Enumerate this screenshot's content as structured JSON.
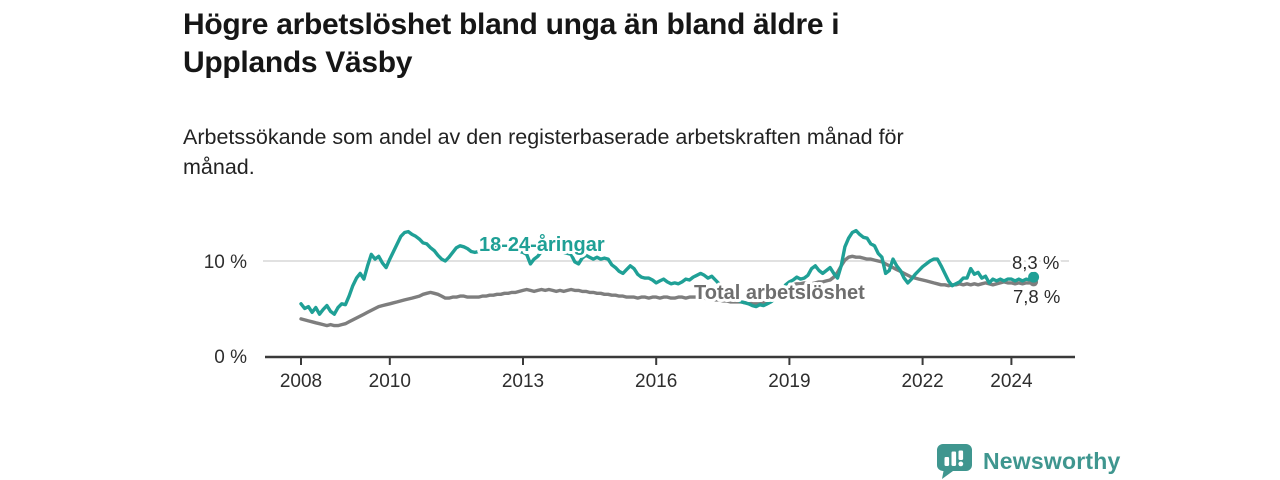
{
  "header": {
    "title_line1": "Högre arbetslöshet bland unga än bland äldre i",
    "title_line2": "Upplands Väsby",
    "subtitle_line1": "Arbetssökande som andel av den registerbaserade arbetskraften månad för",
    "subtitle_line2": "månad."
  },
  "footer": {
    "brand": "Newsworthy"
  },
  "colors": {
    "youth": "#1fa096",
    "total": "#7e7e7e",
    "total_label": "#6e6e6e",
    "axis": "#3a3a3a",
    "grid": "#cfcfcf",
    "text": "#2e2e2e",
    "brand": "#3f968f",
    "background": "#ffffff"
  },
  "chart_data": {
    "type": "line",
    "title": "Högre arbetslöshet bland unga än bland äldre i Upplands Väsby",
    "subtitle": "Arbetssökande som andel av den registerbaserade arbetskraften månad för månad.",
    "x_start": 2008,
    "x_step_months": 1,
    "x_end_approx": 2024.5,
    "xlabel": "",
    "ylabel": "",
    "ylim": [
      0,
      15.5
    ],
    "grid": "horizontal-10-only",
    "legend_position": "inline-labels",
    "x_ticks": [
      2008,
      2010,
      2013,
      2016,
      2019,
      2022,
      2024
    ],
    "x_tick_labels": [
      "2008",
      "2010",
      "2013",
      "2016",
      "2019",
      "2022",
      "2024"
    ],
    "y_ticks": [
      {
        "value": 0,
        "label": "0 %",
        "grid": false
      },
      {
        "value": 10,
        "label": "10 %",
        "grid": true
      }
    ],
    "series": [
      {
        "name": "18-24-åringar",
        "color": "#1fa096",
        "end_label": "8,3 %",
        "end_value": 8.3,
        "values": [
          5.5,
          5.0,
          5.2,
          4.6,
          5.1,
          4.4,
          4.9,
          5.3,
          4.7,
          4.4,
          5.1,
          5.5,
          5.4,
          6.3,
          7.4,
          8.2,
          8.7,
          8.1,
          9.5,
          10.7,
          10.2,
          10.5,
          9.8,
          9.3,
          10.2,
          11.0,
          11.8,
          12.6,
          13.0,
          13.1,
          12.8,
          12.6,
          12.3,
          11.9,
          11.8,
          11.4,
          11.1,
          10.6,
          10.2,
          10.0,
          10.4,
          10.9,
          11.4,
          11.6,
          11.5,
          11.3,
          11.0,
          10.9,
          11.0,
          11.2,
          11.5,
          11.3,
          11.6,
          11.4,
          11.2,
          11.5,
          11.3,
          11.1,
          11.2,
          11.0,
          10.9,
          10.7,
          9.7,
          10.2,
          10.5,
          11.0,
          11.2,
          11.0,
          11.3,
          11.1,
          11.0,
          10.9,
          10.8,
          10.7,
          9.9,
          9.7,
          10.3,
          10.6,
          10.4,
          10.2,
          10.4,
          10.2,
          10.3,
          10.2,
          9.6,
          9.3,
          8.9,
          8.7,
          9.1,
          9.5,
          9.2,
          8.6,
          8.3,
          8.2,
          8.2,
          8.0,
          7.7,
          7.9,
          8.1,
          7.8,
          7.6,
          7.7,
          7.6,
          7.8,
          8.1,
          8.0,
          8.3,
          8.5,
          8.7,
          8.5,
          8.2,
          8.4,
          8.0,
          7.6,
          7.3,
          6.9,
          6.5,
          6.2,
          5.9,
          5.7,
          5.6,
          5.5,
          5.3,
          5.2,
          5.4,
          5.3,
          5.5,
          5.7,
          6.0,
          6.4,
          6.9,
          7.5,
          7.8,
          8.0,
          8.3,
          8.1,
          8.2,
          8.5,
          9.2,
          9.5,
          9.0,
          8.7,
          9.0,
          9.3,
          8.7,
          8.2,
          9.5,
          11.5,
          12.4,
          13.0,
          13.2,
          12.8,
          12.5,
          12.4,
          11.8,
          11.6,
          10.8,
          10.4,
          8.7,
          9.0,
          10.2,
          9.5,
          9.0,
          8.2,
          7.7,
          8.1,
          8.6,
          9.0,
          9.4,
          9.7,
          10.0,
          10.2,
          10.2,
          9.5,
          8.7,
          7.9,
          7.4,
          7.6,
          7.8,
          8.2,
          8.2,
          9.2,
          8.6,
          8.8,
          8.2,
          8.4,
          7.7,
          8.1,
          7.9,
          8.1,
          7.9,
          8.1,
          8.1,
          7.9,
          8.1,
          7.9,
          8.1,
          8.0,
          8.3
        ]
      },
      {
        "name": "Total arbetslöshet",
        "color": "#7e7e7e",
        "label_color": "#6e6e6e",
        "end_label": "7,8 %",
        "end_value": 7.8,
        "values": [
          3.9,
          3.8,
          3.7,
          3.6,
          3.5,
          3.4,
          3.3,
          3.2,
          3.3,
          3.2,
          3.2,
          3.3,
          3.4,
          3.6,
          3.8,
          4.0,
          4.2,
          4.4,
          4.6,
          4.8,
          5.0,
          5.2,
          5.3,
          5.4,
          5.5,
          5.6,
          5.7,
          5.8,
          5.9,
          6.0,
          6.1,
          6.2,
          6.3,
          6.5,
          6.6,
          6.7,
          6.6,
          6.5,
          6.3,
          6.1,
          6.1,
          6.2,
          6.2,
          6.3,
          6.3,
          6.2,
          6.2,
          6.2,
          6.2,
          6.3,
          6.3,
          6.4,
          6.4,
          6.5,
          6.5,
          6.6,
          6.6,
          6.7,
          6.7,
          6.8,
          6.9,
          7.0,
          6.9,
          6.8,
          6.9,
          7.0,
          6.9,
          7.0,
          6.9,
          6.8,
          6.9,
          6.8,
          6.9,
          7.0,
          6.9,
          6.9,
          6.8,
          6.8,
          6.7,
          6.7,
          6.6,
          6.6,
          6.5,
          6.5,
          6.4,
          6.4,
          6.3,
          6.3,
          6.2,
          6.2,
          6.2,
          6.1,
          6.2,
          6.2,
          6.1,
          6.2,
          6.2,
          6.1,
          6.2,
          6.2,
          6.1,
          6.1,
          6.2,
          6.2,
          6.1,
          6.2,
          6.2,
          6.2,
          6.1,
          6.1,
          6.0,
          6.0,
          5.9,
          5.9,
          5.8,
          5.8,
          5.7,
          5.7,
          5.7,
          5.7,
          5.6,
          5.6,
          5.5,
          5.5,
          5.5,
          5.6,
          5.8,
          6.0,
          6.3,
          6.6,
          6.9,
          7.2,
          7.4,
          7.5,
          7.6,
          7.6,
          7.7,
          7.7,
          7.6,
          7.7,
          7.8,
          7.8,
          7.9,
          8.0,
          8.3,
          8.8,
          9.5,
          10.1,
          10.4,
          10.5,
          10.4,
          10.4,
          10.3,
          10.2,
          10.2,
          10.1,
          10.0,
          9.9,
          9.7,
          9.5,
          9.3,
          9.1,
          8.9,
          8.7,
          8.5,
          8.3,
          8.2,
          8.1,
          8.0,
          7.9,
          7.8,
          7.7,
          7.6,
          7.5,
          7.5,
          7.4,
          7.5,
          7.5,
          7.6,
          7.5,
          7.6,
          7.5,
          7.6,
          7.5,
          7.6,
          7.7,
          7.6,
          7.5,
          7.6,
          7.7,
          7.8,
          7.7,
          7.7,
          7.6,
          7.7,
          7.6,
          7.7,
          7.7,
          7.8
        ]
      }
    ]
  }
}
